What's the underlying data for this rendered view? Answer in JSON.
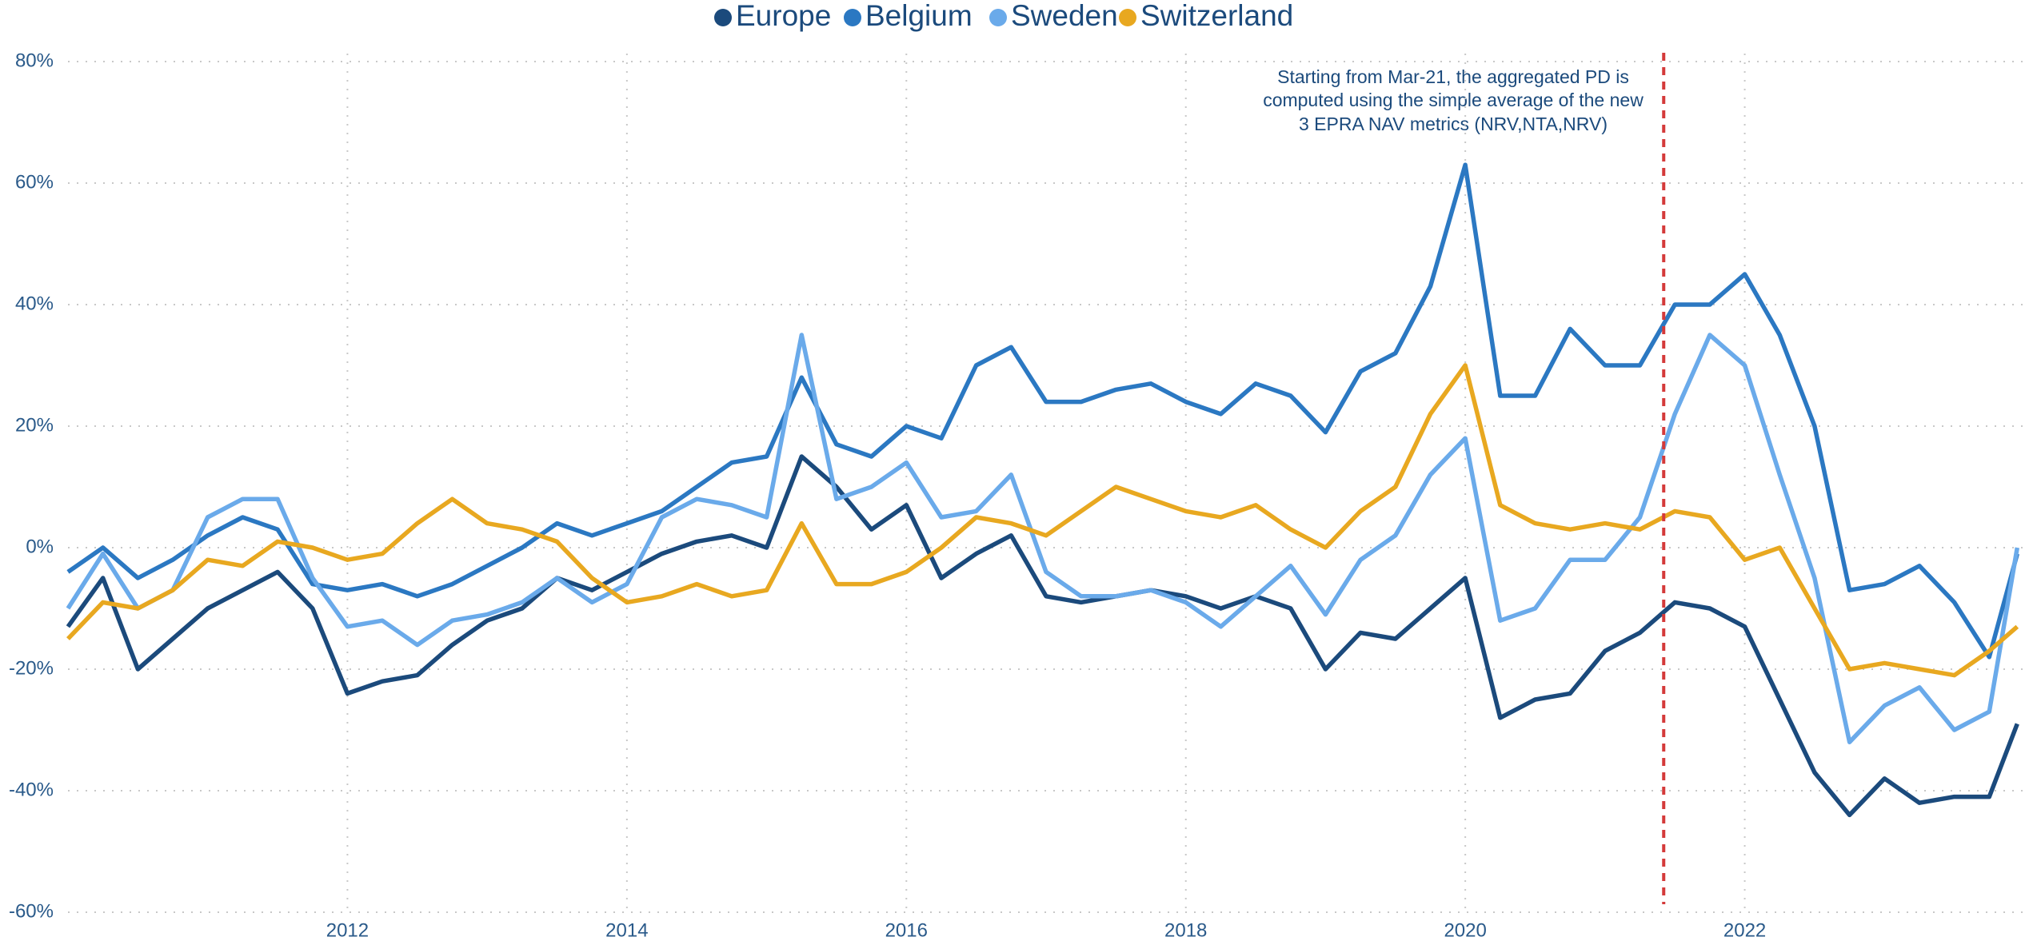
{
  "chart_data": {
    "type": "line",
    "x": [
      2010.0,
      2010.25,
      2010.5,
      2010.75,
      2011.0,
      2011.25,
      2011.5,
      2011.75,
      2012.0,
      2012.25,
      2012.5,
      2012.75,
      2013.0,
      2013.25,
      2013.5,
      2013.75,
      2014.0,
      2014.25,
      2014.5,
      2014.75,
      2015.0,
      2015.25,
      2015.5,
      2015.75,
      2016.0,
      2016.25,
      2016.5,
      2016.75,
      2017.0,
      2017.25,
      2017.5,
      2017.75,
      2018.0,
      2018.25,
      2018.5,
      2018.75,
      2019.0,
      2019.25,
      2019.5,
      2019.75,
      2020.0,
      2020.25,
      2020.5,
      2020.75,
      2021.0,
      2021.25,
      2021.5,
      2021.75,
      2022.0,
      2022.25,
      2022.5,
      2022.75,
      2023.0,
      2023.25,
      2023.5,
      2023.75,
      2023.95
    ],
    "series": [
      {
        "name": "Europe",
        "color": "#1b4a7c",
        "values": [
          -13,
          -5,
          -20,
          -15,
          -10,
          -7,
          -4,
          -10,
          -24,
          -22,
          -21,
          -16,
          -12,
          -10,
          -5,
          -7,
          -4,
          -1,
          1,
          2,
          0,
          15,
          10,
          3,
          7,
          -5,
          -1,
          2,
          -8,
          -9,
          -8,
          -7,
          -8,
          -10,
          -8,
          -10,
          -20,
          -14,
          -15,
          -10,
          -5,
          -28,
          -25,
          -24,
          -17,
          -14,
          -9,
          -10,
          -13,
          -25,
          -37,
          -44,
          -38,
          -42,
          -41,
          -41,
          -29
        ]
      },
      {
        "name": "Belgium",
        "color": "#2b78c2",
        "values": [
          -4,
          0,
          -5,
          -2,
          2,
          5,
          3,
          -6,
          -7,
          -6,
          -8,
          -6,
          -3,
          0,
          4,
          2,
          4,
          6,
          10,
          14,
          15,
          28,
          17,
          15,
          20,
          18,
          30,
          33,
          24,
          24,
          26,
          27,
          24,
          22,
          27,
          25,
          19,
          29,
          32,
          43,
          63,
          25,
          25,
          36,
          30,
          30,
          40,
          40,
          45,
          35,
          20,
          -7,
          -6,
          -3,
          -9,
          -18,
          -1
        ]
      },
      {
        "name": "Sweden",
        "color": "#6aaaea",
        "values": [
          -10,
          -1,
          -10,
          -7,
          5,
          8,
          8,
          -5,
          -13,
          -12,
          -16,
          -12,
          -11,
          -9,
          -5,
          -9,
          -6,
          5,
          8,
          7,
          5,
          35,
          8,
          10,
          14,
          5,
          6,
          12,
          -4,
          -8,
          -8,
          -7,
          -9,
          -13,
          -8,
          -3,
          -11,
          -2,
          2,
          12,
          18,
          -12,
          -10,
          -2,
          -2,
          5,
          22,
          35,
          30,
          12,
          -5,
          -32,
          -26,
          -23,
          -30,
          -27,
          0
        ]
      },
      {
        "name": "Switzerland",
        "color": "#e8a820",
        "values": [
          -15,
          -9,
          -10,
          -7,
          -2,
          -3,
          1,
          0,
          -2,
          -1,
          4,
          8,
          4,
          3,
          1,
          -5,
          -9,
          -8,
          -6,
          -8,
          -7,
          4,
          -6,
          -6,
          -4,
          0,
          5,
          4,
          2,
          6,
          10,
          8,
          6,
          5,
          7,
          3,
          0,
          6,
          10,
          22,
          30,
          7,
          4,
          3,
          4,
          3,
          6,
          5,
          -2,
          0,
          -10,
          -20,
          -19,
          -20,
          -21,
          -17,
          -13
        ]
      }
    ],
    "xlim": [
      2010,
      2024
    ],
    "xticks": [
      2012,
      2014,
      2016,
      2018,
      2020,
      2022
    ],
    "ylim": [
      -60,
      80
    ],
    "yticks": [
      {
        "value": -60,
        "label": "-60%"
      },
      {
        "value": -40,
        "label": "-40%"
      },
      {
        "value": -20,
        "label": "-20%"
      },
      {
        "value": 0,
        "label": "0%"
      },
      {
        "value": 20,
        "label": "20%"
      },
      {
        "value": 40,
        "label": "40%"
      },
      {
        "value": 60,
        "label": "60%"
      },
      {
        "value": 80,
        "label": "80%"
      }
    ],
    "grid": true,
    "vline": {
      "x": 2021.42,
      "color": "#d43a3a"
    },
    "annotation": [
      "Starting from Mar-21, the aggregated PD is",
      "computed using the simple average of the new",
      "3 EPRA NAV metrics (NRV,NTA,NRV)"
    ]
  }
}
